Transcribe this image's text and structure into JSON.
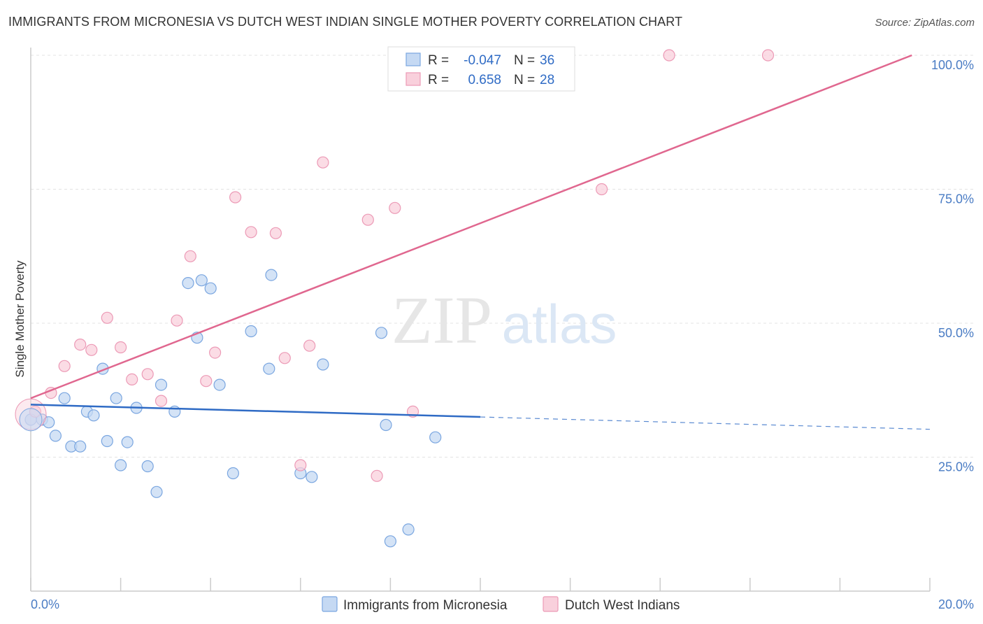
{
  "title": "IMMIGRANTS FROM MICRONESIA VS DUTCH WEST INDIAN SINGLE MOTHER POVERTY CORRELATION CHART",
  "source": "Source: ZipAtlas.com",
  "watermark": {
    "zip": "ZIP",
    "atlas": "atlas"
  },
  "legend": {
    "rows": [
      {
        "r_label": "R =",
        "r_value": "-0.047",
        "n_label": "N =",
        "n_value": "36"
      },
      {
        "r_label": "R =",
        "r_value": "0.658",
        "n_label": "N =",
        "n_value": "28"
      }
    ]
  },
  "chart_data": {
    "type": "scatter",
    "title": "IMMIGRANTS FROM MICRONESIA VS DUTCH WEST INDIAN SINGLE MOTHER POVERTY CORRELATION CHART",
    "xlabel": "",
    "ylabel": "Single Mother Poverty",
    "xlim": [
      0,
      20
    ],
    "ylim": [
      0,
      102
    ],
    "x_tick_labels": [
      "0.0%",
      "20.0%"
    ],
    "y_ticks": [
      25,
      50,
      75,
      100
    ],
    "y_tick_labels": [
      "25.0%",
      "50.0%",
      "75.0%",
      "100.0%"
    ],
    "grid": true,
    "legend_placement": "top-center",
    "series": [
      {
        "name": "Immigrants from Micronesia",
        "color": "#7aa6e0",
        "fill": "#c5d9f3",
        "trend": {
          "x0": 0,
          "y0": 34.8,
          "x1": 10,
          "y1": 32.5,
          "dashed_to_x": 20,
          "dashed_to_y": 30.2,
          "color": "#2f6bc5"
        },
        "points": [
          [
            0.0,
            32
          ],
          [
            0.25,
            32
          ],
          [
            0.4,
            31.5
          ],
          [
            0.55,
            29
          ],
          [
            0.75,
            36
          ],
          [
            0.9,
            27
          ],
          [
            1.1,
            27
          ],
          [
            1.25,
            33.5
          ],
          [
            1.4,
            32.8
          ],
          [
            1.6,
            41.5
          ],
          [
            1.7,
            28
          ],
          [
            1.9,
            36
          ],
          [
            2.0,
            23.5
          ],
          [
            2.15,
            27.8
          ],
          [
            2.35,
            34.2
          ],
          [
            2.6,
            23.3
          ],
          [
            2.8,
            18.5
          ],
          [
            2.9,
            38.5
          ],
          [
            3.2,
            33.5
          ],
          [
            3.5,
            57.5
          ],
          [
            3.7,
            47.3
          ],
          [
            3.8,
            58
          ],
          [
            4.0,
            56.5
          ],
          [
            4.2,
            38.5
          ],
          [
            4.5,
            22
          ],
          [
            4.9,
            48.5
          ],
          [
            5.3,
            41.5
          ],
          [
            5.35,
            59
          ],
          [
            6.0,
            22
          ],
          [
            6.25,
            21.3
          ],
          [
            6.5,
            42.3
          ],
          [
            7.8,
            48.2
          ],
          [
            7.9,
            31
          ],
          [
            8.0,
            9.3
          ],
          [
            8.4,
            11.5
          ],
          [
            9.0,
            28.7
          ]
        ]
      },
      {
        "name": "Dutch West Indians",
        "color": "#ec9ab6",
        "fill": "#f9d0dc",
        "trend": {
          "x0": 0,
          "y0": 36,
          "x1": 19.6,
          "y1": 100,
          "color": "#e0678f"
        },
        "points": [
          [
            0.1,
            33.5
          ],
          [
            0.45,
            37
          ],
          [
            0.75,
            42
          ],
          [
            1.1,
            46
          ],
          [
            1.35,
            45
          ],
          [
            1.7,
            51
          ],
          [
            2.0,
            45.5
          ],
          [
            2.25,
            39.5
          ],
          [
            2.6,
            40.5
          ],
          [
            2.9,
            35.5
          ],
          [
            3.25,
            50.5
          ],
          [
            3.55,
            62.5
          ],
          [
            3.9,
            39.2
          ],
          [
            4.1,
            44.5
          ],
          [
            4.55,
            73.5
          ],
          [
            4.9,
            67
          ],
          [
            5.45,
            66.8
          ],
          [
            5.65,
            43.5
          ],
          [
            6.0,
            23.5
          ],
          [
            6.2,
            45.8
          ],
          [
            6.5,
            80
          ],
          [
            7.5,
            69.3
          ],
          [
            7.7,
            21.5
          ],
          [
            8.1,
            71.5
          ],
          [
            8.5,
            33.5
          ],
          [
            12.7,
            75
          ],
          [
            14.2,
            100
          ],
          [
            16.4,
            100
          ]
        ]
      }
    ]
  }
}
